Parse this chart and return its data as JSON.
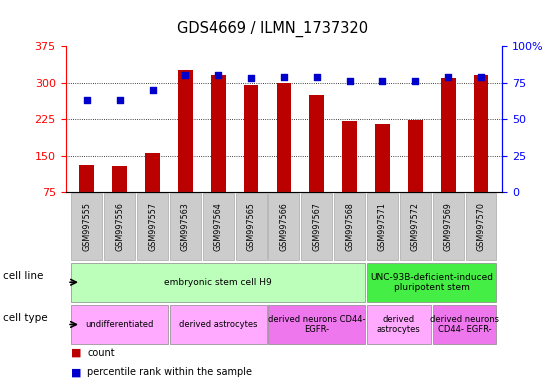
{
  "title": "GDS4669 / ILMN_1737320",
  "samples": [
    "GSM997555",
    "GSM997556",
    "GSM997557",
    "GSM997563",
    "GSM997564",
    "GSM997565",
    "GSM997566",
    "GSM997567",
    "GSM997568",
    "GSM997571",
    "GSM997572",
    "GSM997569",
    "GSM997570"
  ],
  "counts": [
    130,
    128,
    155,
    325,
    315,
    295,
    300,
    275,
    220,
    215,
    222,
    310,
    315
  ],
  "percentiles": [
    63,
    63,
    70,
    80,
    80,
    78,
    79,
    79,
    76,
    76,
    76,
    79,
    79
  ],
  "ylim_left": [
    75,
    375
  ],
  "ylim_right": [
    0,
    100
  ],
  "yticks_left": [
    75,
    150,
    225,
    300,
    375
  ],
  "yticks_right": [
    0,
    25,
    50,
    75,
    100
  ],
  "bar_color": "#bb0000",
  "dot_color": "#0000cc",
  "grid_color": "#000000",
  "cell_line_segments": [
    {
      "text": "embryonic stem cell H9",
      "start": 0,
      "end": 8,
      "color": "#bbffbb"
    },
    {
      "text": "UNC-93B-deficient-induced\npluripotent stem",
      "start": 9,
      "end": 12,
      "color": "#44ee44"
    }
  ],
  "cell_type_segments": [
    {
      "text": "undifferentiated",
      "start": 0,
      "end": 2,
      "color": "#ffaaff"
    },
    {
      "text": "derived astrocytes",
      "start": 3,
      "end": 5,
      "color": "#ffaaff"
    },
    {
      "text": "derived neurons CD44-\nEGFR-",
      "start": 6,
      "end": 8,
      "color": "#ee77ee"
    },
    {
      "text": "derived\nastrocytes",
      "start": 9,
      "end": 10,
      "color": "#ffaaff"
    },
    {
      "text": "derived neurons\nCD44- EGFR-",
      "start": 11,
      "end": 12,
      "color": "#ee77ee"
    }
  ],
  "background_color": "#ffffff",
  "tick_label_bg": "#cccccc",
  "bar_width": 0.45
}
